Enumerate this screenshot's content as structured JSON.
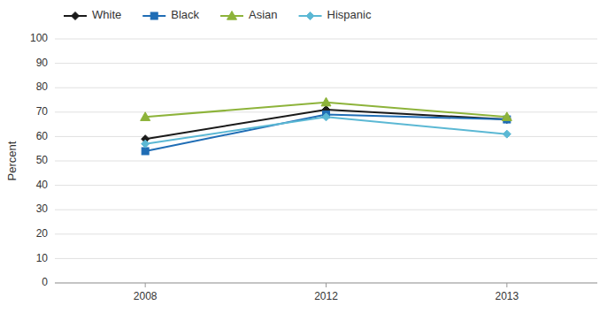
{
  "chart_data": {
    "type": "line",
    "categories": [
      "2008",
      "2012",
      "2013"
    ],
    "series": [
      {
        "name": "White",
        "color": "#1a1a1a",
        "marker": "diamond",
        "values": [
          59,
          71,
          67
        ]
      },
      {
        "name": "Black",
        "color": "#1f6db5",
        "marker": "square",
        "values": [
          54,
          69,
          67
        ]
      },
      {
        "name": "Asian",
        "color": "#8db33a",
        "marker": "triangle",
        "values": [
          68,
          74,
          68
        ]
      },
      {
        "name": "Hispanic",
        "color": "#5bb8d4",
        "marker": "diamond",
        "values": [
          57,
          68,
          61
        ]
      }
    ],
    "ylabel": "Percent",
    "ylim": [
      0,
      100
    ],
    "yticks": [
      0,
      10,
      20,
      30,
      40,
      50,
      60,
      70,
      80,
      90,
      100
    ],
    "grid": true,
    "legend": "top"
  }
}
